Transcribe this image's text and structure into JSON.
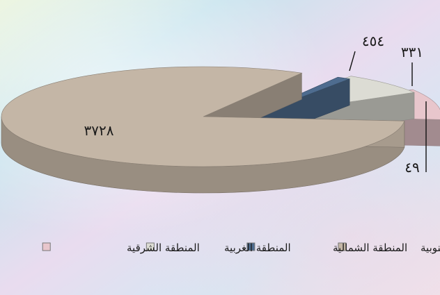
{
  "chart_data": {
    "type": "pie",
    "variant": "3d-exploded",
    "categories": [
      "المنطقة الجنوبية",
      "المنطقة الشمالية",
      "المنطقة الغربية",
      "المنطقة الشرقية"
    ],
    "values": [
      3728,
      49,
      331,
      454
    ],
    "value_labels": [
      "٣٧٢٨",
      "٤٩",
      "٣٣١",
      "٤٥٤"
    ],
    "colors": [
      "#c4b6a6",
      "#4e6c8f",
      "#dcdcd4",
      "#e8c6cc"
    ],
    "legend_position": "bottom",
    "title": ""
  }
}
